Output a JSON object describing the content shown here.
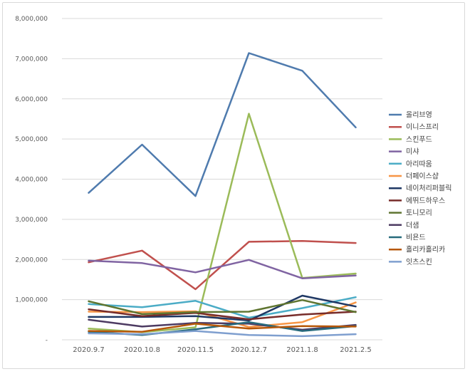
{
  "chart_data": {
    "type": "line",
    "title": "",
    "xlabel": "",
    "ylabel": "",
    "ylim": [
      0,
      8000000
    ],
    "yticks": [
      0,
      1000000,
      2000000,
      3000000,
      4000000,
      5000000,
      6000000,
      7000000,
      8000000
    ],
    "ytick_labels": [
      "-",
      "1,000,000",
      "2,000,000",
      "3,000,000",
      "4,000,000",
      "5,000,000",
      "6,000,000",
      "7,000,000",
      "8,000,000"
    ],
    "categories": [
      "2020.9.7",
      "2020.10.8",
      "2020.11.5",
      "2020.12.7",
      "2021.1.8",
      "2021.2.5"
    ],
    "legend_position": "right",
    "series": [
      {
        "name": "올리브영",
        "color": "#4f7bae",
        "values": [
          3660000,
          4860000,
          3580000,
          7140000,
          6700000,
          5290000
        ]
      },
      {
        "name": "이니스프리",
        "color": "#c0504d",
        "values": [
          1930000,
          2220000,
          1260000,
          2440000,
          2460000,
          2410000
        ]
      },
      {
        "name": "스킨푸드",
        "color": "#9bbb59",
        "values": [
          280000,
          190000,
          310000,
          5630000,
          1540000,
          1650000
        ]
      },
      {
        "name": "미샤",
        "color": "#8064a2",
        "values": [
          1970000,
          1910000,
          1680000,
          1990000,
          1530000,
          1600000
        ]
      },
      {
        "name": "아리따움",
        "color": "#4bacc6",
        "values": [
          890000,
          810000,
          970000,
          550000,
          790000,
          1060000
        ]
      },
      {
        "name": "더페이스샵",
        "color": "#f79646",
        "values": [
          700000,
          690000,
          710000,
          320000,
          440000,
          930000
        ]
      },
      {
        "name": "네이처리퍼블릭",
        "color": "#1f3864",
        "values": [
          570000,
          570000,
          590000,
          480000,
          1100000,
          830000
        ]
      },
      {
        "name": "에뛰드하우스",
        "color": "#772c2a",
        "values": [
          760000,
          590000,
          670000,
          510000,
          630000,
          700000
        ]
      },
      {
        "name": "토니모리",
        "color": "#5f7530",
        "values": [
          960000,
          640000,
          690000,
          700000,
          990000,
          690000
        ]
      },
      {
        "name": "더샘",
        "color": "#4d3b62",
        "values": [
          500000,
          330000,
          420000,
          400000,
          250000,
          370000
        ]
      },
      {
        "name": "비욘드",
        "color": "#276a7c",
        "values": [
          200000,
          120000,
          260000,
          440000,
          220000,
          340000
        ]
      },
      {
        "name": "홀리카홀리카",
        "color": "#b65708",
        "values": [
          220000,
          200000,
          400000,
          280000,
          340000,
          330000
        ]
      },
      {
        "name": "잇츠스킨",
        "color": "#7f9fcf",
        "values": [
          160000,
          140000,
          220000,
          120000,
          90000,
          140000
        ]
      }
    ]
  }
}
